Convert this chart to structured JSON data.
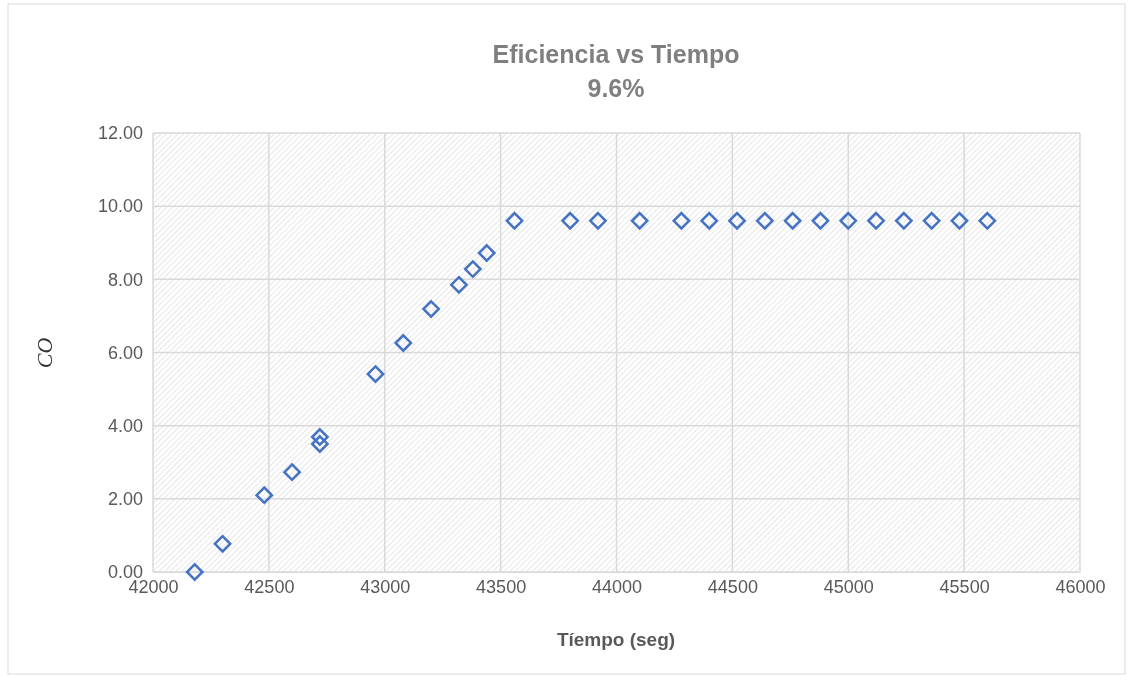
{
  "chart_data": {
    "type": "scatter",
    "title": "Eficiencia vs Tiempo",
    "subtitle": "9.6%",
    "xlabel": "Tíempo (seg)",
    "ylabel": "CO",
    "x": [
      42180,
      42300,
      42480,
      42600,
      42720,
      42720,
      42960,
      43080,
      43200,
      43320,
      43380,
      43440,
      43560,
      43800,
      43920,
      44100,
      44280,
      44400,
      44520,
      44640,
      44760,
      44880,
      45000,
      45120,
      45240,
      45360,
      45480,
      45600
    ],
    "series": [
      {
        "color": "#4472c4",
        "values": [
          0,
          0.77,
          2.1,
          2.73,
          3.69,
          3.5,
          5.41,
          6.26,
          7.19,
          7.85,
          8.28,
          8.72,
          9.6,
          9.6,
          9.6,
          9.6,
          9.6,
          9.6,
          9.6,
          9.6,
          9.6,
          9.6,
          9.6,
          9.6,
          9.6,
          9.6,
          9.6,
          9.6
        ]
      }
    ],
    "xlim": [
      42000,
      46000
    ],
    "xticks": [
      42000,
      42500,
      43000,
      43500,
      44000,
      44500,
      45000,
      45500,
      46000
    ],
    "ylim": [
      0,
      12
    ],
    "yticks": [
      {
        "value": 0,
        "label": "0.00"
      },
      {
        "value": 2,
        "label": "2.00"
      },
      {
        "value": 4,
        "label": "4.00"
      },
      {
        "value": 6,
        "label": "6.00"
      },
      {
        "value": 8,
        "label": "8.00"
      },
      {
        "value": 10,
        "label": "10.00"
      },
      {
        "value": 12,
        "label": "12.00"
      }
    ],
    "grid": true,
    "marker": "diamond"
  }
}
